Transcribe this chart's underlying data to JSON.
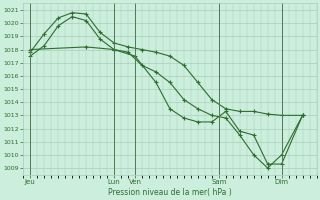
{
  "background_color": "#cceedd",
  "grid_color": "#aaccbb",
  "line_color": "#2d6e2d",
  "vline_color": "#557755",
  "title": "Pression niveau de la mer( hPa )",
  "ylim": [
    1008.5,
    1021.5
  ],
  "yticks": [
    1009,
    1010,
    1011,
    1012,
    1013,
    1014,
    1015,
    1016,
    1017,
    1018,
    1019,
    1020,
    1021
  ],
  "xlim": [
    0,
    252
  ],
  "xtick_positions": [
    6,
    78,
    96,
    168,
    222
  ],
  "xtick_labels": [
    "Jeu",
    "Lun",
    "Ven",
    "Sam",
    "Dim"
  ],
  "vlines": [
    6,
    78,
    96,
    168,
    222
  ],
  "series1": {
    "x": [
      6,
      18,
      30,
      42,
      54,
      66,
      78,
      90,
      102,
      114,
      126,
      138,
      150,
      162,
      174,
      186,
      198,
      210,
      222,
      240
    ],
    "y": [
      1017.8,
      1019.2,
      1020.4,
      1020.8,
      1020.7,
      1019.3,
      1018.5,
      1018.2,
      1018.0,
      1017.8,
      1017.5,
      1016.8,
      1015.5,
      1014.2,
      1013.5,
      1013.3,
      1013.3,
      1013.1,
      1013.0,
      1013.0
    ]
  },
  "series2": {
    "x": [
      6,
      18,
      30,
      42,
      54,
      66,
      78,
      90,
      102,
      114,
      126,
      138,
      150,
      162,
      174,
      186,
      198,
      210,
      222,
      240
    ],
    "y": [
      1017.5,
      1018.3,
      1019.8,
      1020.5,
      1020.2,
      1018.8,
      1018.0,
      1017.8,
      1016.8,
      1016.3,
      1015.5,
      1014.2,
      1013.5,
      1013.0,
      1012.8,
      1011.5,
      1010.0,
      1009.0,
      1010.0,
      1013.0
    ]
  },
  "series3": {
    "x": [
      6,
      54,
      78,
      96,
      114,
      126,
      138,
      150,
      162,
      174,
      186,
      198,
      210,
      222,
      240
    ],
    "y": [
      1018.0,
      1018.2,
      1018.0,
      1017.5,
      1015.5,
      1013.5,
      1012.8,
      1012.5,
      1012.5,
      1013.3,
      1011.8,
      1011.5,
      1009.3,
      1009.3,
      1013.0
    ]
  }
}
